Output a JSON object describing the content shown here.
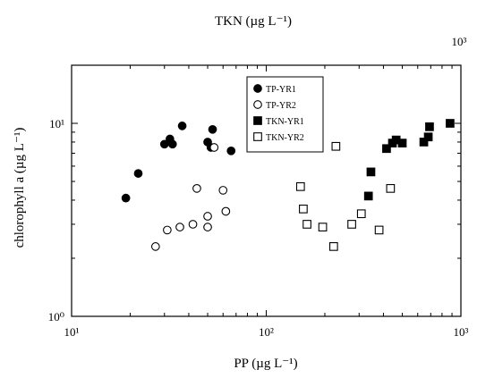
{
  "chart_data": {
    "type": "scatter",
    "top_xlabel": "TKN (µg L⁻¹)",
    "top_tick_label": "10³",
    "xlabel": "PP (µg L⁻¹)",
    "ylabel": "chlorophyll a (µg L⁻¹)",
    "x_scale": "log",
    "y_scale": "log",
    "xlim": [
      10,
      1000
    ],
    "ylim": [
      1,
      20
    ],
    "x_ticks": [
      {
        "value": 10,
        "label": "10¹"
      },
      {
        "value": 100,
        "label": "10²"
      },
      {
        "value": 1000,
        "label": "10³"
      }
    ],
    "y_ticks": [
      {
        "value": 1,
        "label": "10⁰"
      },
      {
        "value": 10,
        "label": "10¹"
      }
    ],
    "grid": false,
    "legend_position": "top-center",
    "series": [
      {
        "name": "TP-YR1",
        "marker": "circle-filled",
        "points": [
          [
            19,
            4.1
          ],
          [
            22,
            5.5
          ],
          [
            30,
            7.8
          ],
          [
            32,
            8.3
          ],
          [
            33,
            7.8
          ],
          [
            37,
            9.7
          ],
          [
            50,
            8.0
          ],
          [
            52,
            7.5
          ],
          [
            53,
            9.3
          ],
          [
            66,
            7.2
          ]
        ]
      },
      {
        "name": "TP-YR2",
        "marker": "circle-open",
        "points": [
          [
            27,
            2.3
          ],
          [
            31,
            2.8
          ],
          [
            36,
            2.9
          ],
          [
            42,
            3.0
          ],
          [
            44,
            4.6
          ],
          [
            50,
            2.9
          ],
          [
            50,
            3.3
          ],
          [
            54,
            7.5
          ],
          [
            60,
            4.5
          ],
          [
            62,
            3.5
          ]
        ]
      },
      {
        "name": "TKN-YR1",
        "marker": "square-filled",
        "points": [
          [
            335,
            4.2
          ],
          [
            345,
            5.6
          ],
          [
            415,
            7.4
          ],
          [
            445,
            7.9
          ],
          [
            465,
            8.2
          ],
          [
            500,
            7.9
          ],
          [
            645,
            8.0
          ],
          [
            680,
            8.5
          ],
          [
            690,
            9.6
          ],
          [
            880,
            10.0
          ]
        ]
      },
      {
        "name": "TKN-YR2",
        "marker": "square-open",
        "points": [
          [
            150,
            4.7
          ],
          [
            155,
            3.6
          ],
          [
            162,
            3.0
          ],
          [
            195,
            2.9
          ],
          [
            222,
            2.3
          ],
          [
            228,
            7.6
          ],
          [
            275,
            3.0
          ],
          [
            308,
            3.4
          ],
          [
            380,
            2.8
          ],
          [
            435,
            4.6
          ]
        ]
      }
    ]
  }
}
